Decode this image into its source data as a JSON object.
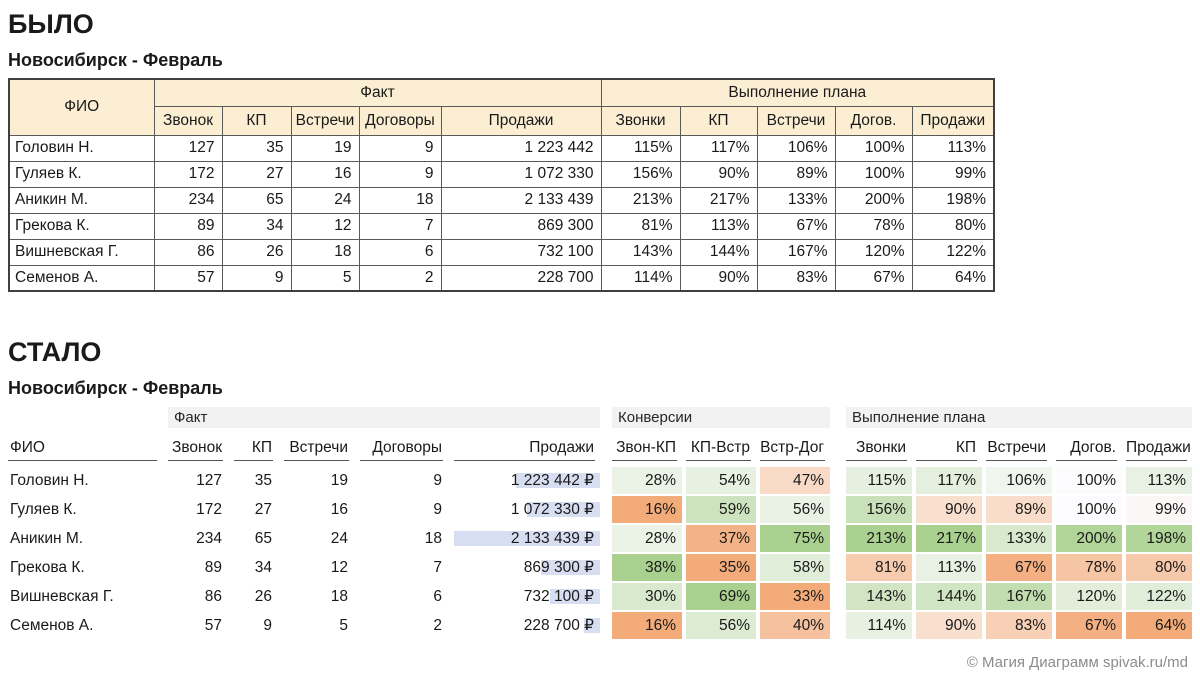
{
  "colors": {
    "header_fill": "#FBEED3",
    "band_fill": "#F2F2F2",
    "bar_fill": "#D8DEF1",
    "scale_min_color": "#F3AB79",
    "scale_mid_color": "#FCFCFE",
    "scale_max_color": "#A9D08E",
    "underline": "#555555",
    "footer_color": "#8C8C8C"
  },
  "before": {
    "section_title": "БЫЛО",
    "subtitle": "Новосибирск - Февраль",
    "table": {
      "name_header": "ФИО",
      "groups": [
        {
          "label": "Факт",
          "cols": [
            "Звонок",
            "КП",
            "Встречи",
            "Договоры",
            "Продажи"
          ]
        },
        {
          "label": "Выполнение плана",
          "cols": [
            "Звонки",
            "КП",
            "Встречи",
            "Догов.",
            "Продажи"
          ]
        }
      ],
      "rows": [
        {
          "name": "Головин Н.",
          "fact": [
            127,
            35,
            19,
            9
          ],
          "sales": "1 223 442",
          "plan": [
            115,
            117,
            106,
            100,
            113
          ]
        },
        {
          "name": "Гуляев К.",
          "fact": [
            172,
            27,
            16,
            9
          ],
          "sales": "1 072 330",
          "plan": [
            156,
            90,
            89,
            100,
            99
          ]
        },
        {
          "name": "Аникин М.",
          "fact": [
            234,
            65,
            24,
            18
          ],
          "sales": "2 133 439",
          "plan": [
            213,
            217,
            133,
            200,
            198
          ]
        },
        {
          "name": "Грекова К.",
          "fact": [
            89,
            34,
            12,
            7
          ],
          "sales": "869 300",
          "plan": [
            81,
            113,
            67,
            78,
            80
          ]
        },
        {
          "name": "Вишневская Г.",
          "fact": [
            86,
            26,
            18,
            6
          ],
          "sales": "732 100",
          "plan": [
            143,
            144,
            167,
            120,
            122
          ]
        },
        {
          "name": "Семенов А.",
          "fact": [
            57,
            9,
            5,
            2
          ],
          "sales": "228 700",
          "plan": [
            114,
            90,
            83,
            67,
            64
          ]
        }
      ]
    }
  },
  "after": {
    "section_title": "СТАЛО",
    "subtitle": "Новосибирск - Февраль",
    "table": {
      "name_header": "ФИО",
      "groups": [
        {
          "label": "Факт",
          "cols": [
            "Звонок",
            "КП",
            "Встречи",
            "Договоры",
            "Продажи"
          ]
        },
        {
          "label": "Конверсии",
          "cols": [
            "Звон-КП",
            "КП-Встр",
            "Встр-Дог"
          ]
        },
        {
          "label": "Выполнение плана",
          "cols": [
            "Звонки",
            "КП",
            "Встречи",
            "Догов.",
            "Продажи"
          ]
        }
      ],
      "sales_max": 2133439,
      "plan_midpoint": 100,
      "rows": [
        {
          "name": "Головин Н.",
          "fact": [
            127,
            35,
            19,
            9
          ],
          "sales": 1223442,
          "sales_display": "1 223 442 ₽",
          "conv": [
            28,
            54,
            47
          ],
          "plan": [
            115,
            117,
            106,
            100,
            113
          ]
        },
        {
          "name": "Гуляев К.",
          "fact": [
            172,
            27,
            16,
            9
          ],
          "sales": 1072330,
          "sales_display": "1 072 330 ₽",
          "conv": [
            16,
            59,
            56
          ],
          "plan": [
            156,
            90,
            89,
            100,
            99
          ]
        },
        {
          "name": "Аникин М.",
          "fact": [
            234,
            65,
            24,
            18
          ],
          "sales": 2133439,
          "sales_display": "2 133 439 ₽",
          "conv": [
            28,
            37,
            75
          ],
          "plan": [
            213,
            217,
            133,
            200,
            198
          ]
        },
        {
          "name": "Грекова К.",
          "fact": [
            89,
            34,
            12,
            7
          ],
          "sales": 869300,
          "sales_display": "869 300 ₽",
          "conv": [
            38,
            35,
            58
          ],
          "plan": [
            81,
            113,
            67,
            78,
            80
          ]
        },
        {
          "name": "Вишневская Г.",
          "fact": [
            86,
            26,
            18,
            6
          ],
          "sales": 732100,
          "sales_display": "732 100 ₽",
          "conv": [
            30,
            69,
            33
          ],
          "plan": [
            143,
            144,
            167,
            120,
            122
          ]
        },
        {
          "name": "Семенов А.",
          "fact": [
            57,
            9,
            5,
            2
          ],
          "sales": 228700,
          "sales_display": "228 700 ₽",
          "conv": [
            16,
            56,
            40
          ],
          "plan": [
            114,
            90,
            83,
            67,
            64
          ]
        }
      ]
    }
  },
  "footer": {
    "credit": "© Магия Диаграмм spivak.ru/md"
  },
  "chart_data": [
    {
      "type": "table",
      "title": "БЫЛО — Новосибирск - Февраль",
      "columns": [
        "ФИО",
        "Факт: Звонок",
        "Факт: КП",
        "Факт: Встречи",
        "Факт: Договоры",
        "Факт: Продажи",
        "Выполнение плана: Звонки",
        "Выполнение плана: КП",
        "Выполнение плана: Встречи",
        "Выполнение плана: Догов.",
        "Выполнение плана: Продажи"
      ],
      "rows": [
        [
          "Головин Н.",
          127,
          35,
          19,
          9,
          1223442,
          "115%",
          "117%",
          "106%",
          "100%",
          "113%"
        ],
        [
          "Гуляев К.",
          172,
          27,
          16,
          9,
          1072330,
          "156%",
          "90%",
          "89%",
          "100%",
          "99%"
        ],
        [
          "Аникин М.",
          234,
          65,
          24,
          18,
          2133439,
          "213%",
          "217%",
          "133%",
          "200%",
          "198%"
        ],
        [
          "Грекова К.",
          89,
          34,
          12,
          7,
          869300,
          "81%",
          "113%",
          "67%",
          "78%",
          "80%"
        ],
        [
          "Вишневская Г.",
          86,
          26,
          18,
          6,
          732100,
          "143%",
          "144%",
          "167%",
          "120%",
          "122%"
        ],
        [
          "Семенов А.",
          57,
          9,
          5,
          2,
          228700,
          "114%",
          "90%",
          "83%",
          "67%",
          "64%"
        ]
      ]
    },
    {
      "type": "table",
      "title": "СТАЛО — Новосибирск - Февраль",
      "columns": [
        "ФИО",
        "Факт: Звонок",
        "Факт: КП",
        "Факт: Встречи",
        "Факт: Договоры",
        "Факт: Продажи",
        "Конверсии: Звон-КП",
        "Конверсии: КП-Встр",
        "Конверсии: Встр-Дог",
        "Выполнение плана: Звонки",
        "Выполнение плана: КП",
        "Выполнение плана: Встречи",
        "Выполнение плана: Догов.",
        "Выполнение плана: Продажи"
      ],
      "rows": [
        [
          "Головин Н.",
          127,
          35,
          19,
          9,
          "1 223 442 ₽",
          "28%",
          "54%",
          "47%",
          "115%",
          "117%",
          "106%",
          "100%",
          "113%"
        ],
        [
          "Гуляев К.",
          172,
          27,
          16,
          9,
          "1 072 330 ₽",
          "16%",
          "59%",
          "56%",
          "156%",
          "90%",
          "89%",
          "100%",
          "99%"
        ],
        [
          "Аникин М.",
          234,
          65,
          24,
          18,
          "2 133 439 ₽",
          "28%",
          "37%",
          "75%",
          "213%",
          "217%",
          "133%",
          "200%",
          "198%"
        ],
        [
          "Грекова К.",
          89,
          34,
          12,
          7,
          "869 300 ₽",
          "38%",
          "35%",
          "58%",
          "81%",
          "113%",
          "67%",
          "78%",
          "80%"
        ],
        [
          "Вишневская Г.",
          86,
          26,
          18,
          6,
          "732 100 ₽",
          "30%",
          "69%",
          "33%",
          "143%",
          "144%",
          "167%",
          "120%",
          "122%"
        ],
        [
          "Семенов А.",
          57,
          9,
          5,
          2,
          "228 700 ₽",
          "16%",
          "56%",
          "40%",
          "114%",
          "90%",
          "83%",
          "67%",
          "64%"
        ]
      ],
      "notes": "Продажи column has right-aligned blue data bars proportional to value; Конверсии uses per-column orange-white-green color scale; Выполнение плана uses global orange-white-green scale with 100% midpoint."
    }
  ]
}
